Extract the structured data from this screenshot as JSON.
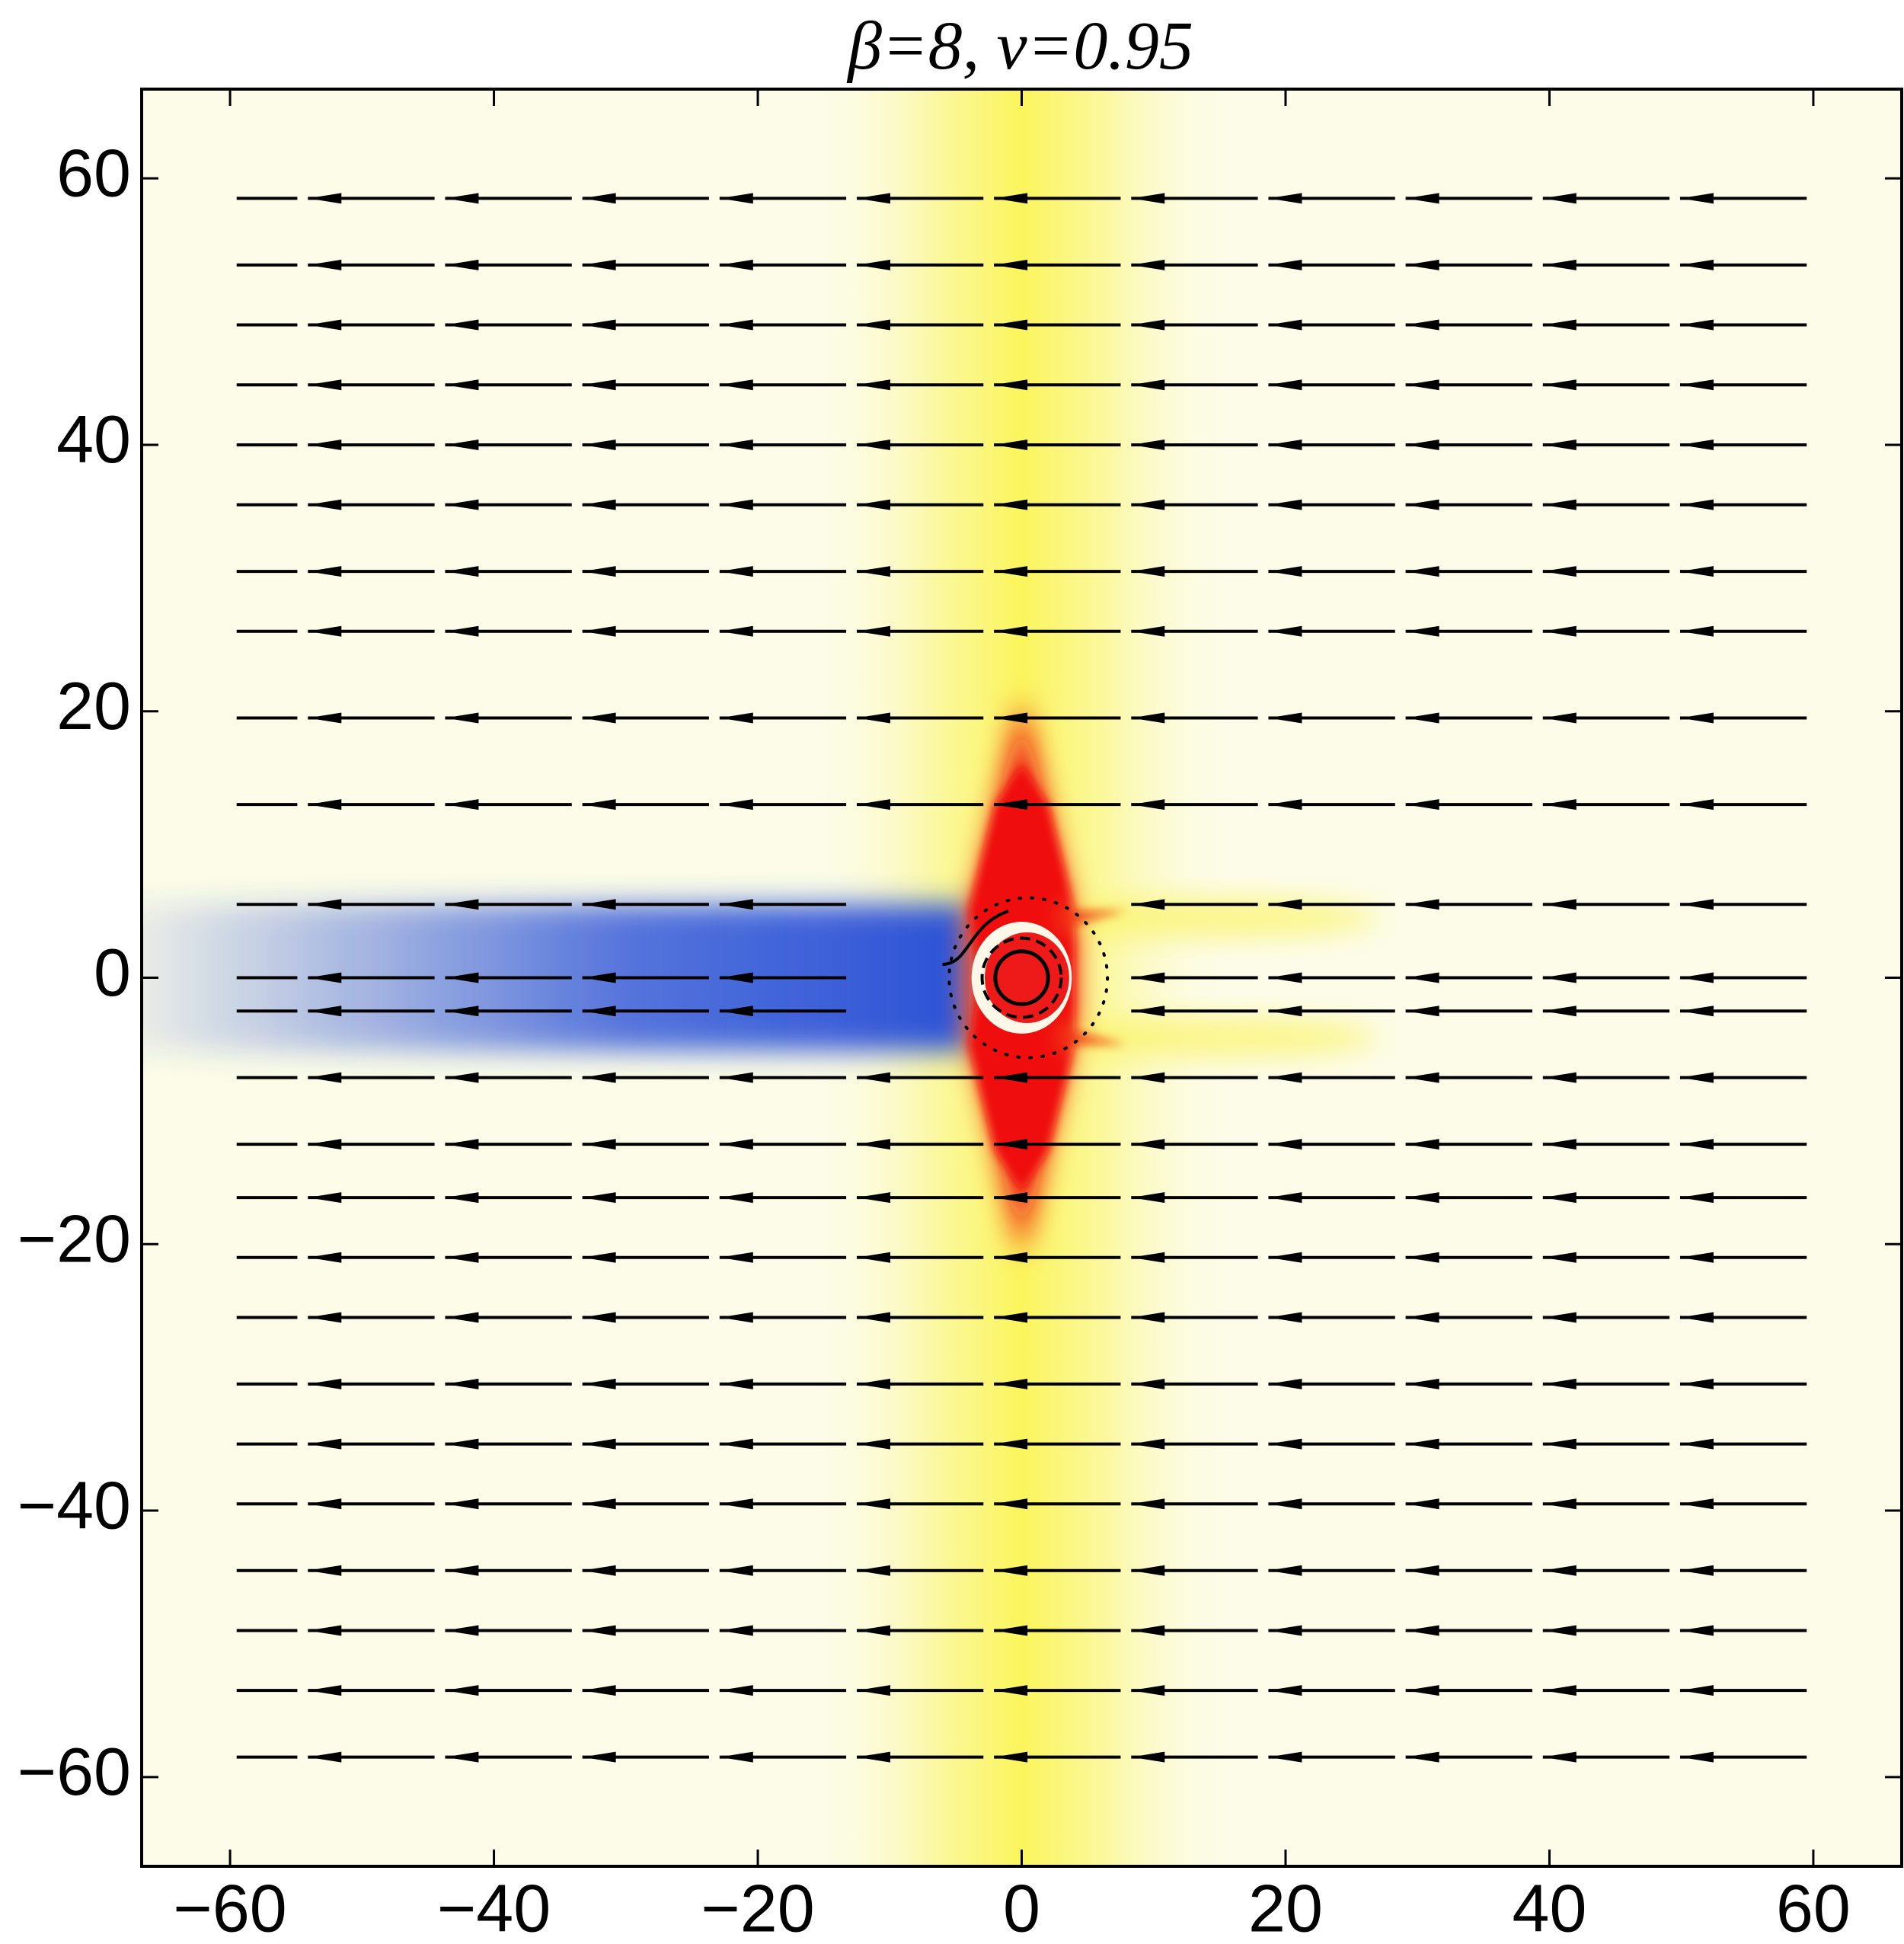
{
  "chart_data": {
    "type": "streamplot",
    "title": "β=8, v=0.95",
    "xlim": [
      -66.7,
      66.7
    ],
    "ylim": [
      -66.7,
      66.7
    ],
    "xticks": [
      {
        "value": -60,
        "label": "−60"
      },
      {
        "value": -40,
        "label": "−40"
      },
      {
        "value": -20,
        "label": "−20"
      },
      0,
      20,
      40,
      60
    ],
    "yticks": [
      {
        "value": -60,
        "label": "−60"
      },
      {
        "value": -40,
        "label": "−40"
      },
      {
        "value": -20,
        "label": "−20"
      },
      0,
      20,
      40,
      60
    ]
  }
}
